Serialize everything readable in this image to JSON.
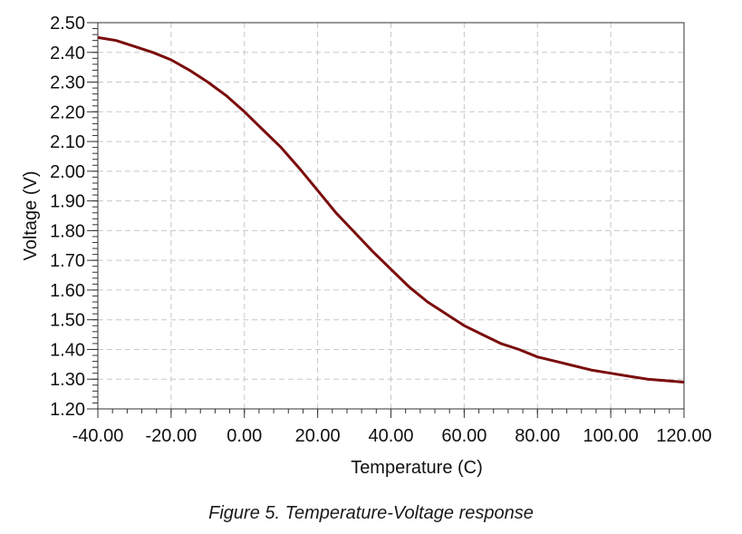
{
  "chart_data": {
    "type": "line",
    "xlabel": "Temperature (C)",
    "ylabel": "Voltage (V)",
    "xlim": [
      -40,
      120
    ],
    "ylim": [
      1.2,
      2.5
    ],
    "x_ticks": [
      "-40.00",
      "-20.00",
      "0.00",
      "20.00",
      "40.00",
      "60.00",
      "80.00",
      "100.00",
      "120.00"
    ],
    "y_ticks": [
      "1.20",
      "1.30",
      "1.40",
      "1.50",
      "1.60",
      "1.70",
      "1.80",
      "1.90",
      "2.00",
      "2.10",
      "2.20",
      "2.30",
      "2.40",
      "2.50"
    ],
    "grid": true,
    "series": [
      {
        "color": "#7b0c0c",
        "x": [
          -40,
          -35,
          -30,
          -25,
          -20,
          -15,
          -10,
          -5,
          0,
          5,
          10,
          15,
          20,
          25,
          30,
          35,
          40,
          45,
          50,
          55,
          60,
          65,
          70,
          75,
          80,
          85,
          90,
          95,
          100,
          105,
          110,
          115,
          120
        ],
        "y": [
          2.45,
          2.44,
          2.42,
          2.4,
          2.375,
          2.34,
          2.3,
          2.255,
          2.2,
          2.14,
          2.08,
          2.01,
          1.935,
          1.86,
          1.795,
          1.73,
          1.67,
          1.61,
          1.56,
          1.52,
          1.48,
          1.45,
          1.42,
          1.4,
          1.375,
          1.36,
          1.345,
          1.33,
          1.32,
          1.31,
          1.3,
          1.295,
          1.29
        ]
      }
    ]
  },
  "caption": "Figure 5. Temperature-Voltage response"
}
